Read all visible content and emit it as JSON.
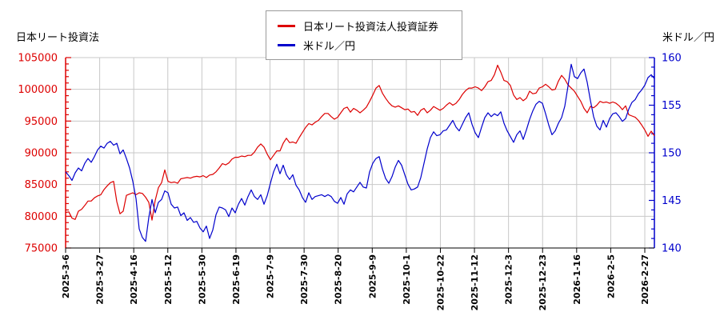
{
  "titles": {
    "left_axis_title": "日本リート投資法",
    "right_axis_title": "米ドル／円"
  },
  "legend": {
    "items": [
      {
        "label": "日本リート投資法人投資証券",
        "color": "#dd0000"
      },
      {
        "label": "米ドル／円",
        "color": "#0000cc"
      }
    ]
  },
  "chart_data": {
    "type": "line",
    "grid": true,
    "background": "#ffffff",
    "grid_color": "#c8c8c8",
    "x_axis_color": "#000000",
    "x_tick_labels": [
      "2025-3-6",
      "2025-3-27",
      "2025-4-16",
      "2025-5-12",
      "2025-5-30",
      "2025-6-19",
      "2025-7-9",
      "2025-7-30",
      "2025-8-20",
      "2025-9-9",
      "2025-10-1",
      "2025-10-22",
      "2025-11-12",
      "2025-12-3",
      "2025-12-23",
      "2026-1-16",
      "2026-2-5",
      "2026-2-27"
    ],
    "y_left": {
      "min": 75000,
      "max": 105000,
      "major_step": 5000,
      "minor_step": 1000,
      "color": "#dd0000",
      "tick_labels": [
        "105000",
        "100000",
        "95000",
        "90000",
        "85000",
        "80000",
        "75000"
      ]
    },
    "y_right": {
      "min": 140,
      "max": 160,
      "major_step": 5,
      "minor_step": 1,
      "color": "#0000cc",
      "tick_labels": [
        "160",
        "155",
        "150",
        "145",
        "140"
      ]
    },
    "sampling": "uniform samples across the full date range, left to right",
    "series": [
      {
        "name": "日本リート投資法人投資証券",
        "axis": "left",
        "color": "#dd0000",
        "values": [
          80600,
          80700,
          79700,
          79500,
          80800,
          81100,
          81700,
          82400,
          82400,
          82900,
          83200,
          83400,
          84200,
          84800,
          85300,
          85500,
          82300,
          80400,
          80800,
          83300,
          83500,
          83700,
          83400,
          83700,
          83600,
          83000,
          82200,
          79400,
          82500,
          84500,
          85300,
          87300,
          85500,
          85300,
          85400,
          85200,
          85900,
          86000,
          86100,
          86000,
          86200,
          86300,
          86200,
          86400,
          86100,
          86500,
          86600,
          87000,
          87600,
          88300,
          88100,
          88400,
          89000,
          89300,
          89300,
          89500,
          89400,
          89600,
          89600,
          90100,
          90900,
          91400,
          90900,
          89800,
          88900,
          89600,
          90300,
          90300,
          91500,
          92300,
          91600,
          91700,
          91500,
          92400,
          93200,
          94000,
          94600,
          94400,
          94800,
          95100,
          95700,
          96200,
          96200,
          95700,
          95300,
          95600,
          96300,
          97000,
          97200,
          96400,
          97000,
          96700,
          96300,
          96700,
          97200,
          98100,
          99100,
          100200,
          100600,
          99400,
          98600,
          97900,
          97400,
          97200,
          97400,
          97100,
          96800,
          96900,
          96400,
          96500,
          95900,
          96700,
          97000,
          96300,
          96700,
          97300,
          97000,
          96700,
          97000,
          97500,
          97900,
          97500,
          97800,
          98400,
          99200,
          99800,
          100200,
          100200,
          100400,
          100200,
          99800,
          100400,
          101200,
          101400,
          102300,
          103800,
          102700,
          101400,
          101200,
          100600,
          99100,
          98400,
          98700,
          98200,
          98600,
          99700,
          99300,
          99400,
          100200,
          100400,
          100800,
          100400,
          99900,
          100000,
          101300,
          102200,
          101600,
          100700,
          100200,
          99700,
          98900,
          98100,
          97000,
          96300,
          97300,
          97100,
          97500,
          98100,
          97900,
          98000,
          97800,
          98000,
          97800,
          97400,
          96800,
          97400,
          96000,
          95800,
          95600,
          95100,
          94400,
          93600,
          92600,
          93400,
          92700
        ]
      },
      {
        "name": "米ドル／円",
        "axis": "right",
        "color": "#0000cc",
        "values": [
          148.0,
          147.6,
          147.1,
          147.9,
          148.4,
          148.1,
          148.9,
          149.4,
          149.0,
          149.6,
          150.3,
          150.7,
          150.5,
          151.0,
          151.2,
          150.8,
          151.0,
          149.9,
          150.3,
          149.4,
          148.4,
          147.0,
          145.2,
          142.0,
          141.1,
          140.7,
          143.2,
          145.1,
          143.7,
          144.8,
          145.1,
          146.0,
          145.8,
          144.6,
          144.2,
          144.3,
          143.4,
          143.7,
          142.9,
          143.2,
          142.7,
          142.8,
          142.1,
          141.7,
          142.3,
          141.0,
          141.9,
          143.5,
          144.3,
          144.2,
          144.0,
          143.3,
          144.2,
          143.7,
          144.6,
          145.2,
          144.5,
          145.4,
          146.1,
          145.4,
          145.1,
          145.6,
          144.6,
          145.5,
          146.8,
          148.0,
          148.8,
          147.8,
          148.7,
          147.7,
          147.2,
          147.7,
          146.6,
          146.1,
          145.3,
          144.8,
          145.8,
          145.1,
          145.4,
          145.5,
          145.6,
          145.4,
          145.6,
          145.4,
          144.9,
          144.7,
          145.3,
          144.6,
          145.7,
          146.1,
          145.9,
          146.4,
          146.9,
          146.4,
          146.3,
          148.0,
          148.9,
          149.4,
          149.6,
          148.3,
          147.3,
          146.8,
          147.5,
          148.5,
          149.2,
          148.7,
          147.7,
          146.7,
          146.1,
          146.2,
          146.4,
          147.4,
          148.9,
          150.4,
          151.6,
          152.2,
          151.8,
          151.9,
          152.3,
          152.4,
          152.9,
          153.4,
          152.7,
          152.3,
          153.0,
          153.7,
          154.2,
          153.0,
          152.1,
          151.6,
          152.7,
          153.7,
          154.2,
          153.8,
          154.1,
          153.9,
          154.3,
          153.1,
          152.3,
          151.7,
          151.1,
          151.9,
          152.3,
          151.4,
          152.4,
          153.5,
          154.4,
          155.1,
          155.4,
          155.2,
          154.1,
          152.9,
          151.9,
          152.3,
          153.1,
          153.7,
          154.9,
          157.0,
          159.3,
          158.0,
          157.8,
          158.4,
          158.8,
          157.4,
          155.5,
          153.8,
          152.8,
          152.4,
          153.4,
          152.7,
          153.6,
          154.1,
          154.2,
          153.8,
          153.3,
          153.6,
          154.6,
          155.3,
          155.6,
          156.2,
          156.6,
          157.1,
          157.9,
          158.2,
          157.8
        ]
      }
    ]
  }
}
